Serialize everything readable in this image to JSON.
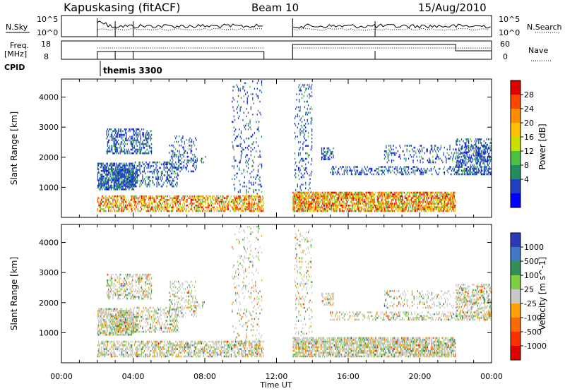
{
  "header": {
    "station": "Kapuskasing (fitACF)",
    "beam": "Beam 10",
    "date": "15/Aug/2010"
  },
  "top_panels": {
    "nsky_label": "N.Sky",
    "nsky_ticks": [
      "10^5",
      "10^0"
    ],
    "nsearch_label": "N.Search",
    "nsearch_ticks": [
      "10^5",
      "10^0"
    ],
    "freq_label_1": "Freq.",
    "freq_label_2": "[MHz]",
    "freq_ticks": [
      "18",
      "8"
    ],
    "nave_label": "Nave",
    "nave_ticks": [
      "60",
      "0"
    ],
    "cpid_label": "CPID",
    "cpid_value": "themis 3300"
  },
  "chart_data": [
    {
      "type": "heatmap",
      "name": "power",
      "ylabel": "Slant Range [km]",
      "xlabel": "Time UT",
      "y_ticks": [
        1000,
        2000,
        3000,
        4000
      ],
      "x_ticks": [
        "00:00",
        "04:00",
        "08:00",
        "12:00",
        "16:00",
        "20:00",
        "00:00"
      ],
      "colorbar_label": "Power [dB]",
      "colorbar_ticks": [
        "28",
        "24",
        "20",
        "16",
        "12",
        "8",
        "4"
      ],
      "colorbar_colors": [
        "#e00000",
        "#ff4500",
        "#ff8c00",
        "#ffc000",
        "#c8e000",
        "#4cc040",
        "#1f8f5f",
        "#2040c0",
        "#0000ff"
      ],
      "data_gap_ut_hours": [
        11.3,
        12.9
      ]
    },
    {
      "type": "heatmap",
      "name": "velocity",
      "ylabel": "Slant Range [km]",
      "xlabel": "Time UT",
      "y_ticks": [
        1000,
        2000,
        3000,
        4000
      ],
      "x_ticks": [
        "00:00",
        "04:00",
        "08:00",
        "12:00",
        "16:00",
        "20:00",
        "00:00"
      ],
      "colorbar_label": "Velocity [m s^-1]",
      "colorbar_ticks": [
        "1000",
        "500",
        "100",
        "25",
        "-25",
        "-100",
        "-500",
        "-1000"
      ],
      "colorbar_colors": [
        "#2a3ab8",
        "#3f78c8",
        "#2f8f55",
        "#7ed040",
        "#c8c8c8",
        "#ffa000",
        "#ff6a00",
        "#ff3000",
        "#e00000"
      ]
    }
  ]
}
